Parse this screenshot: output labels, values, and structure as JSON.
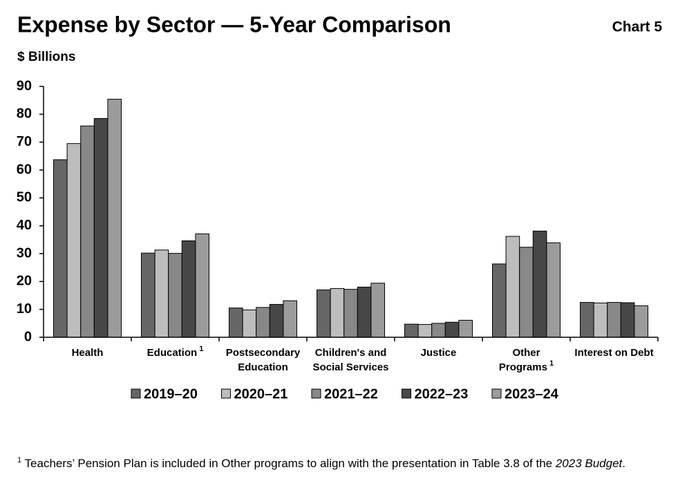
{
  "chart_data": {
    "type": "bar",
    "title": "Expense by Sector — 5-Year Comparison",
    "chart_label": "Chart 5",
    "y_label": "$ Billions",
    "categories": [
      "Health",
      "Education",
      "Postsecondary\nEducation",
      "Children's and\nSocial Services",
      "Justice",
      "Other\nPrograms",
      "Interest on Debt"
    ],
    "category_notes": [
      null,
      "1",
      null,
      null,
      null,
      "1",
      null
    ],
    "series": [
      {
        "name": "2019–20",
        "color": "#666666",
        "values": [
          63.7,
          30.2,
          10.5,
          17.0,
          4.7,
          26.3,
          12.5
        ]
      },
      {
        "name": "2020–21",
        "color": "#bdbdbd",
        "values": [
          69.5,
          31.3,
          9.8,
          17.5,
          4.6,
          36.2,
          12.3
        ]
      },
      {
        "name": "2021–22",
        "color": "#888888",
        "values": [
          75.8,
          30.1,
          10.7,
          17.2,
          5.0,
          32.3,
          12.5
        ]
      },
      {
        "name": "2022–23",
        "color": "#474747",
        "values": [
          78.5,
          34.6,
          11.8,
          18.0,
          5.4,
          38.1,
          12.4
        ]
      },
      {
        "name": "2023–24",
        "color": "#9b9b9b",
        "values": [
          85.4,
          37.1,
          13.1,
          19.4,
          6.1,
          33.9,
          11.3
        ]
      }
    ],
    "ylim": [
      0,
      90
    ],
    "yticks": [
      0,
      10,
      20,
      30,
      40,
      50,
      60,
      70,
      80,
      90
    ],
    "grid": false,
    "legend": "bottom",
    "footnote": {
      "marker": "1",
      "text": " Teachers’ Pension Plan is included in Other programs to align with the presentation in Table 3.8 of the ",
      "emphasis": "2023 Budget",
      "end": "."
    }
  }
}
